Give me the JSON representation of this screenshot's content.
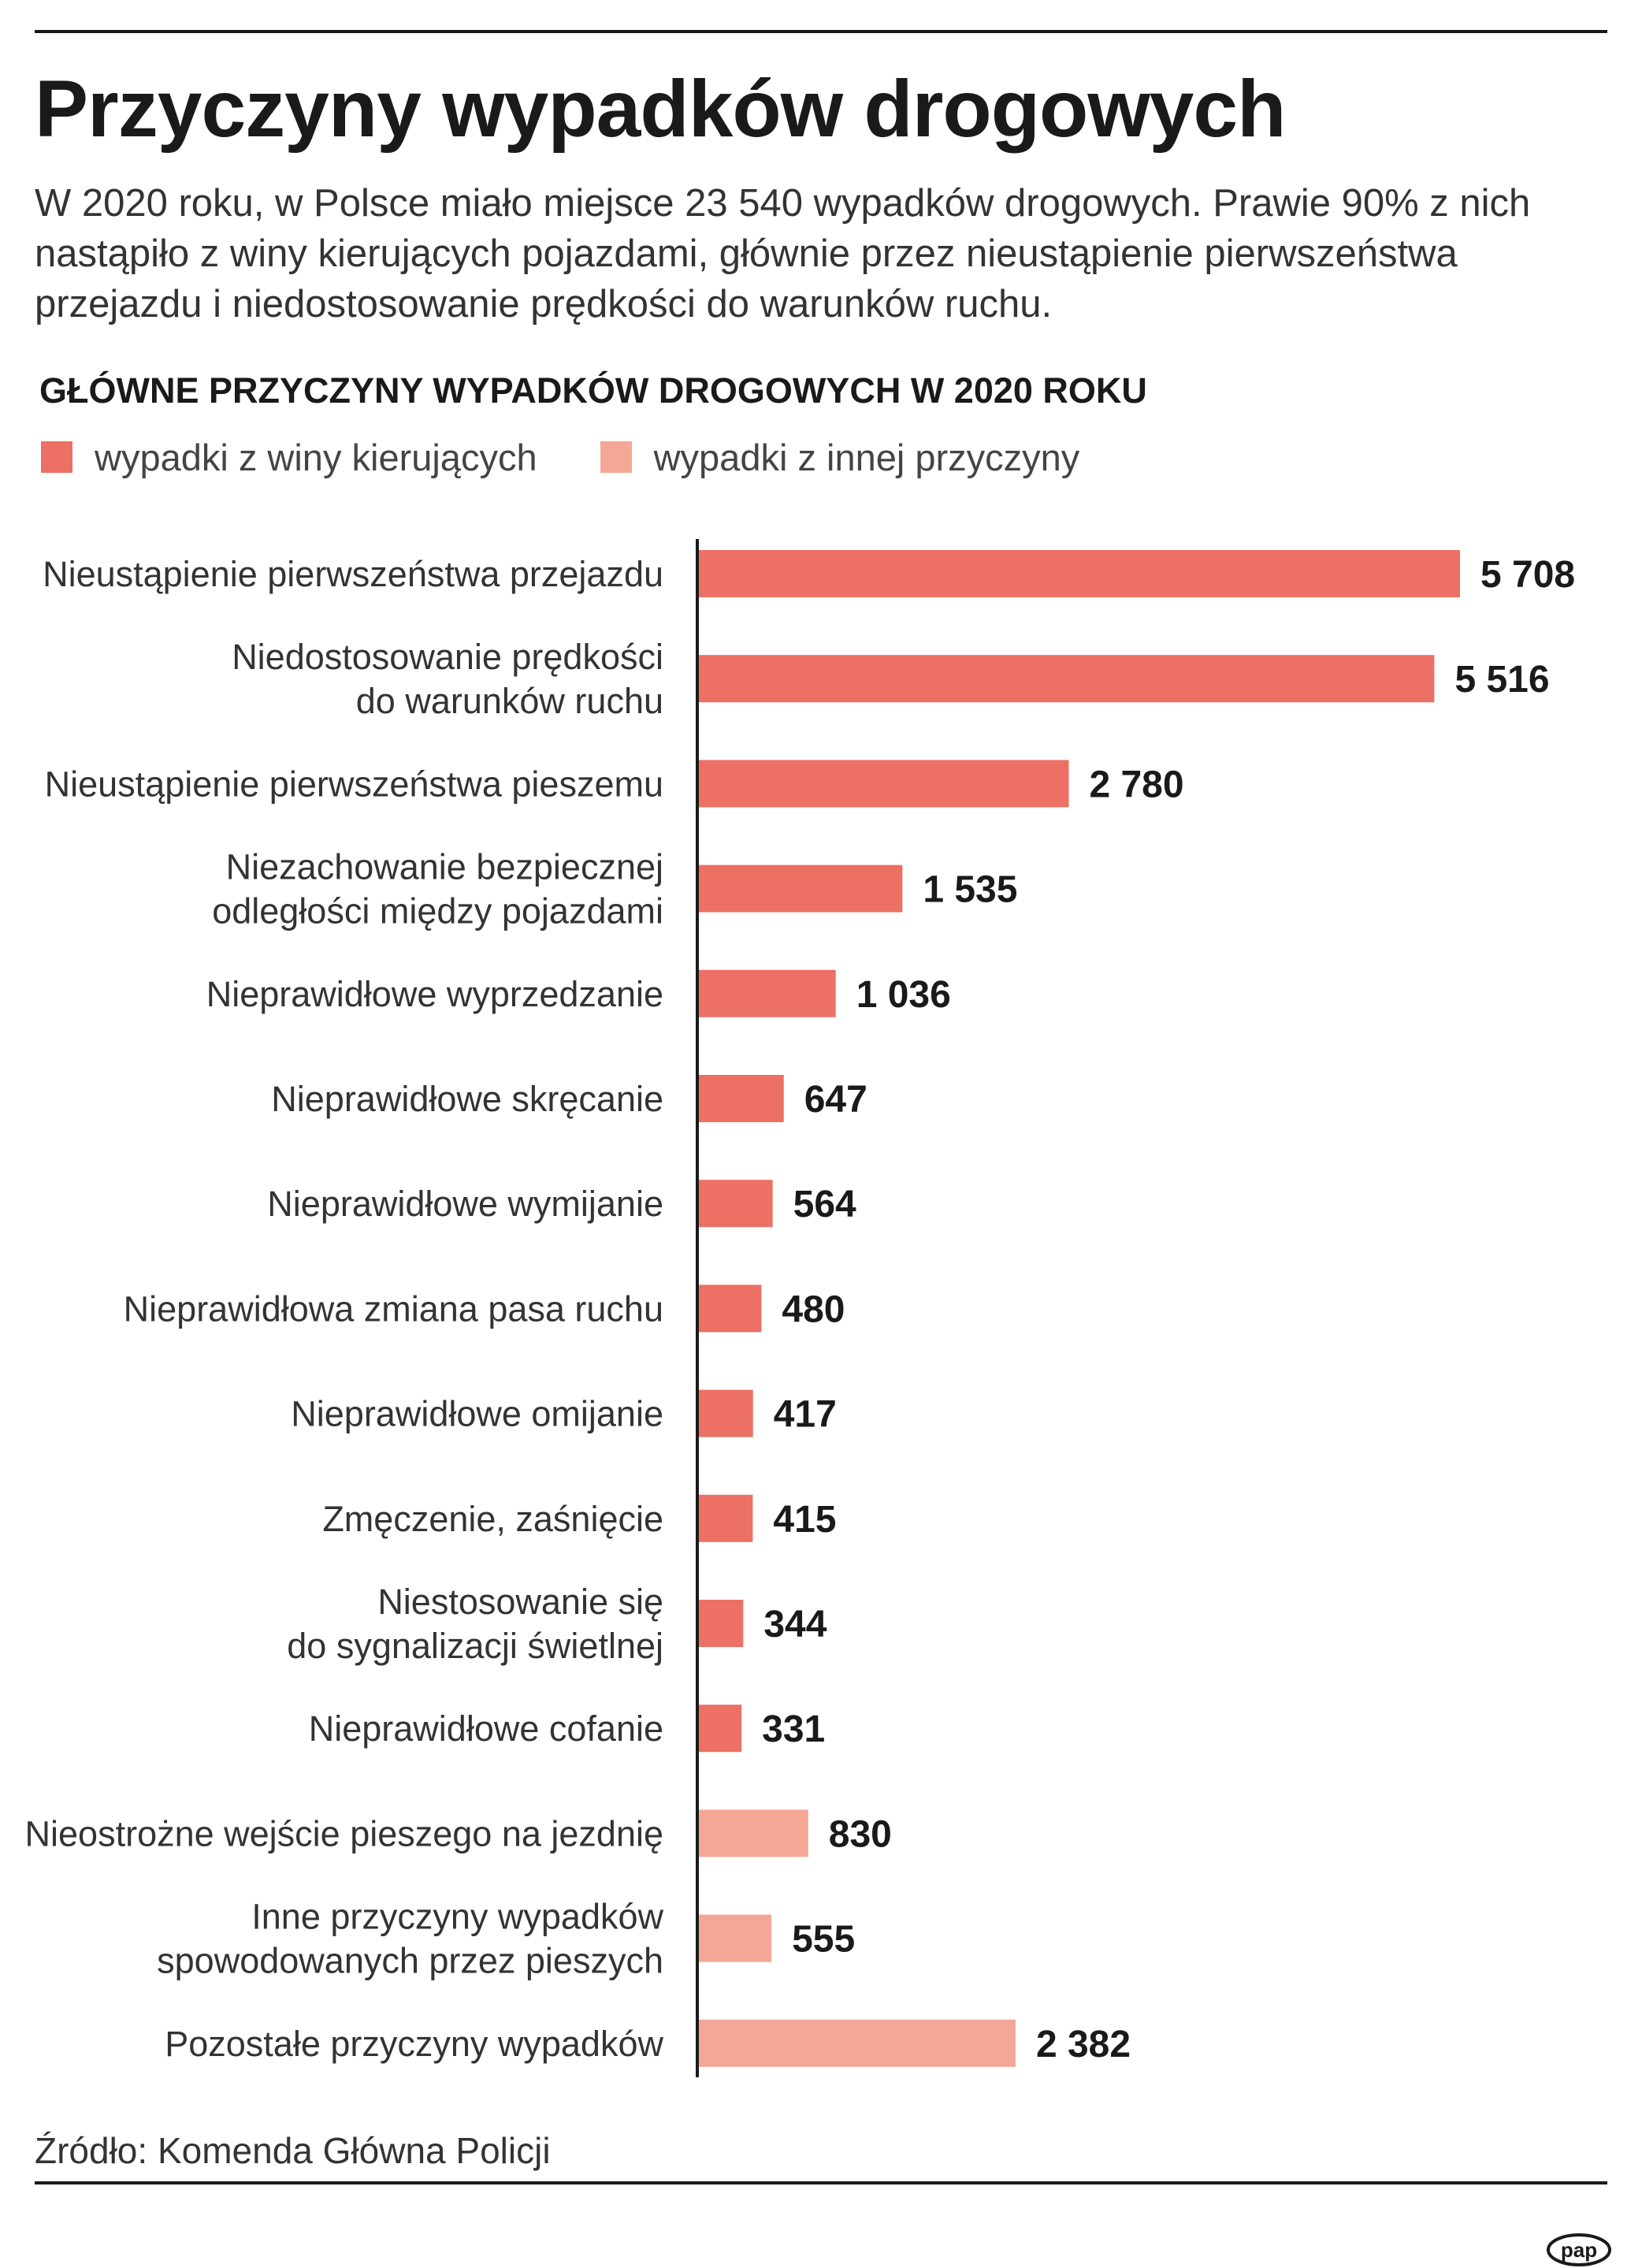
{
  "title": "Przyczyny wypadków drogowych",
  "intro": "W 2020 roku, w Polsce miało miejsce 23 540 wypadków drogowych. Prawie 90% z nich nastąpiło z winy kierujących pojazdami, głównie przez nieustąpienie pierwszeństwa przejazdu i niedostosowanie prędkości do warunków ruchu.",
  "legend": {
    "drivers": "wypadki z winy kierujących",
    "other": "wypadki z innej przyczyny"
  },
  "colors": {
    "drivers": "#ec7063",
    "other": "#f4a797",
    "axis": "#1a1a1a"
  },
  "source": "Źródło: Komenda Główna Policji",
  "logo": "pap",
  "chart_data": {
    "type": "bar",
    "orientation": "horizontal",
    "title": "GŁÓWNE PRZYCZYNY WYPADKÓW DROGOWYCH W 2020 ROKU",
    "categories": [
      [
        "Nieustąpienie pierwszeństwa przejazdu"
      ],
      [
        "Niedostosowanie prędkości",
        "do warunków ruchu"
      ],
      [
        "Nieustąpienie pierwszeństwa pieszemu"
      ],
      [
        "Niezachowanie bezpiecznej",
        "odległości między pojazdami"
      ],
      [
        "Nieprawidłowe wyprzedzanie"
      ],
      [
        "Nieprawidłowe skręcanie"
      ],
      [
        "Nieprawidłowe wymijanie"
      ],
      [
        "Nieprawidłowa zmiana pasa ruchu"
      ],
      [
        "Nieprawidłowe omijanie"
      ],
      [
        "Zmęczenie, zaśnięcie"
      ],
      [
        "Niestosowanie się",
        "do sygnalizacji świetlnej"
      ],
      [
        "Nieprawidłowe cofanie"
      ],
      [
        "Nieostrożne wejście pieszego na jezdnię"
      ],
      [
        "Inne przyczyny wypadków",
        "spowodowanych przez pieszych"
      ],
      [
        "Pozostałe przyczyny wypadków"
      ]
    ],
    "values": [
      5708,
      5516,
      2780,
      1535,
      1036,
      647,
      564,
      480,
      417,
      415,
      344,
      331,
      830,
      555,
      2382
    ],
    "value_labels": [
      "5 708",
      "5 516",
      "2 780",
      "1 535",
      "1 036",
      "647",
      "564",
      "480",
      "417",
      "415",
      "344",
      "331",
      "830",
      "555",
      "2 382"
    ],
    "groups": [
      "drivers",
      "drivers",
      "drivers",
      "drivers",
      "drivers",
      "drivers",
      "drivers",
      "drivers",
      "drivers",
      "drivers",
      "drivers",
      "drivers",
      "other",
      "other",
      "other"
    ],
    "series": [
      {
        "name": "wypadki z winy kierujących",
        "key": "drivers"
      },
      {
        "name": "wypadki z innej przyczyny",
        "key": "other"
      }
    ],
    "xlim": [
      0,
      5708
    ],
    "grid": false,
    "legend_position": "top-left"
  }
}
